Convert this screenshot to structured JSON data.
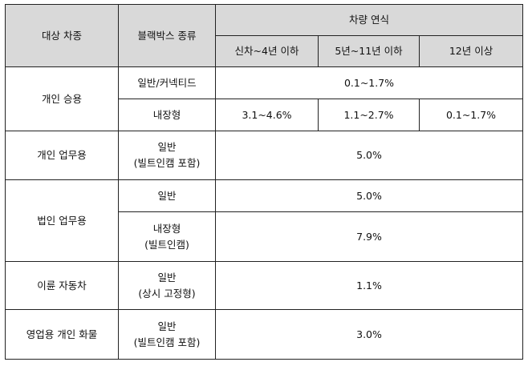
{
  "header": {
    "vehicle_type": "대상 차종",
    "blackbox_type": "블랙박스 종류",
    "vehicle_year": "차량 연식",
    "year_cols": [
      "신차~4년 이하",
      "5년~11년 이하",
      "12년 이상"
    ]
  },
  "rows": {
    "personal": {
      "label": "개인 승용",
      "general": {
        "type": "일반/커넥티드",
        "value": "0.1~1.7%"
      },
      "builtin": {
        "type": "내장형",
        "values": [
          "3.1~4.6%",
          "1.1~2.7%",
          "0.1~1.7%"
        ]
      }
    },
    "personal_business": {
      "label": "개인 업무용",
      "type_line1": "일반",
      "type_line2": "(빌트인캠 포함)",
      "value": "5.0%"
    },
    "corporate": {
      "label": "법인 업무용",
      "general": {
        "type": "일반",
        "value": "5.0%"
      },
      "builtin": {
        "type_line1": "내장형",
        "type_line2": "(빌트인캠)",
        "value": "7.9%"
      }
    },
    "motorcycle": {
      "label": "이륜 자동차",
      "type_line1": "일반",
      "type_line2": "(상시 고정형)",
      "value": "1.1%"
    },
    "truck": {
      "label": "영업용 개인 화물",
      "type_line1": "일반",
      "type_line2": "(빌트인캠 포함)",
      "value": "3.0%"
    }
  }
}
